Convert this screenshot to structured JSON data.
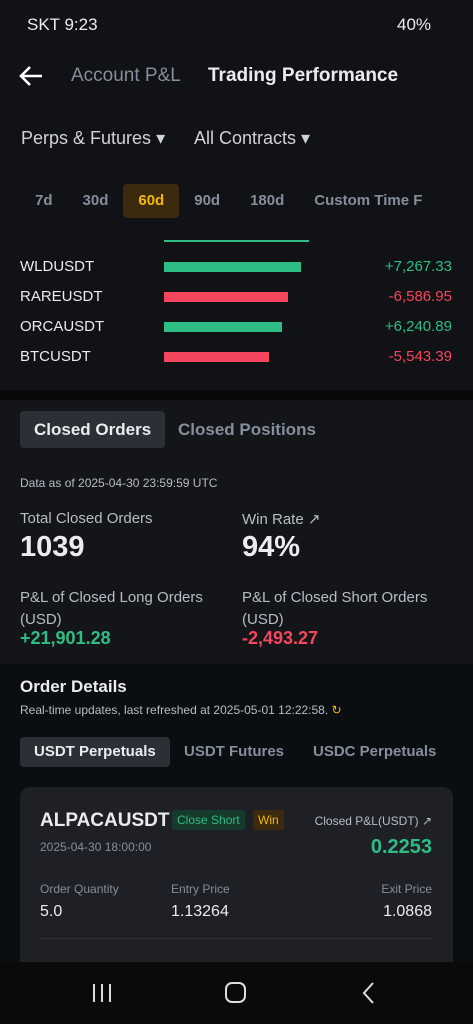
{
  "status": {
    "carrier_time": "SKT 9:23",
    "battery": "40%"
  },
  "header": {
    "tab_inactive": "Account P&L",
    "tab_active": "Trading Performance"
  },
  "filters": {
    "product": "Perps & Futures",
    "contracts": "All Contracts"
  },
  "periods": {
    "items": [
      "7d",
      "30d",
      "60d",
      "90d",
      "180d",
      "Custom Time F"
    ],
    "active": 2
  },
  "ranking": [
    {
      "symbol": "WLDUSDT",
      "value": 7267.33,
      "label": "+7,267.33"
    },
    {
      "symbol": "RAREUSDT",
      "value": -6586.95,
      "label": "-6,586.95"
    },
    {
      "symbol": "ORCAUSDT",
      "value": 6240.89,
      "label": "+6,240.89"
    },
    {
      "symbol": "BTCUSDT",
      "value": -5543.39,
      "label": "-5,543.39"
    }
  ],
  "order_tabs": [
    "Closed Orders",
    "Closed Positions"
  ],
  "stats": {
    "data_as_of": "Data as of 2025-04-30 23:59:59 UTC",
    "total_label": "Total Closed Orders",
    "total": "1039",
    "win_label": "Win Rate",
    "win": "94%",
    "long_label": "P&L of Closed Long Orders (USD)",
    "long": "+21,901.28",
    "short_label": "P&L of Closed Short Orders (USD)",
    "short": "-2,493.27"
  },
  "details": {
    "title": "Order Details",
    "refresh": "Real-time updates, last refreshed at 2025-05-01 12:22:58.",
    "tabs": [
      "USDT Perpetuals",
      "USDT Futures",
      "USDC Perpetuals"
    ]
  },
  "card": {
    "symbol": "ALPACAUSDT",
    "side": "Close Short",
    "result": "Win",
    "pnl_label": "Closed P&L(USDT)",
    "time": "2025-04-30 18:00:00",
    "pnl": "0.2253",
    "qty_label": "Order Quantity",
    "qty": "5.0",
    "entry_label": "Entry Price",
    "entry": "1.13264",
    "exit_label": "Exit Price",
    "exit": "1.0868"
  }
}
